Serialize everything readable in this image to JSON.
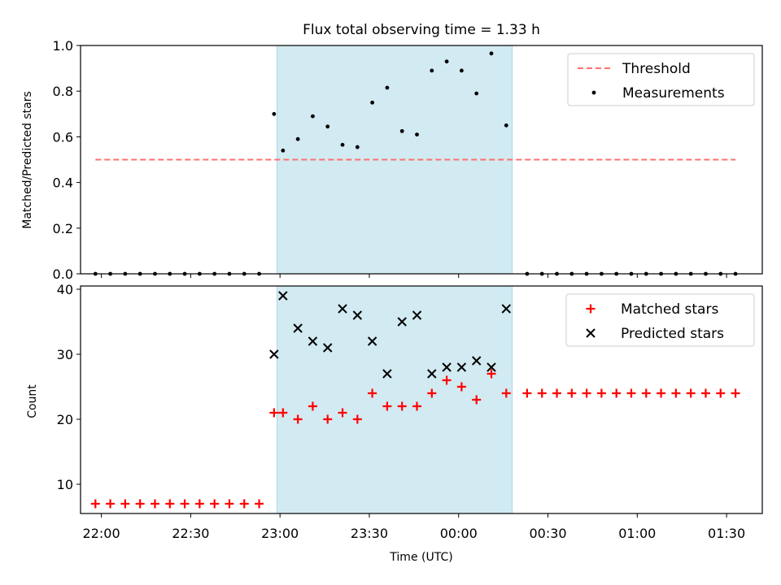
{
  "title": "Flux total observing time = 1.33 h",
  "colors": {
    "highlight": "#add8e6",
    "threshold": "#ff7070",
    "measurement": "#000000",
    "matched": "#ff0000",
    "predicted": "#000000"
  },
  "chart_data": [
    {
      "type": "scatter",
      "ylabel": "Matched/Predicted stars",
      "ylim": [
        0,
        1.0
      ],
      "yticks": [
        "0.0",
        "0.2",
        "0.4",
        "0.6",
        "0.8",
        "1.0"
      ],
      "x_range": [
        "21:53",
        "01:42"
      ],
      "highlight_span": [
        "22:59",
        "00:18"
      ],
      "legend_position": "top-right",
      "series": [
        {
          "name": "Threshold",
          "style": "dashed line",
          "x": [
            "21:58",
            "01:33"
          ],
          "values": [
            0.5,
            0.5
          ]
        },
        {
          "name": "Measurements",
          "style": "dot",
          "x": [
            "21:58",
            "22:03",
            "22:08",
            "22:13",
            "22:18",
            "22:23",
            "22:28",
            "22:33",
            "22:38",
            "22:43",
            "22:48",
            "22:53",
            "22:58",
            "23:01",
            "23:06",
            "23:11",
            "23:16",
            "23:21",
            "23:26",
            "23:31",
            "23:36",
            "23:41",
            "23:46",
            "23:51",
            "23:56",
            "24:01",
            "24:06",
            "24:11",
            "24:16",
            "24:23",
            "24:28",
            "24:33",
            "24:38",
            "24:43",
            "24:48",
            "24:53",
            "24:58",
            "25:03",
            "25:08",
            "25:13",
            "25:18",
            "25:23",
            "25:28",
            "25:33"
          ],
          "values": [
            0,
            0,
            0,
            0,
            0,
            0,
            0,
            0,
            0,
            0,
            0,
            0,
            0.7,
            0.54,
            0.59,
            0.69,
            0.645,
            0.565,
            0.555,
            0.75,
            0.815,
            0.625,
            0.61,
            0.89,
            0.93,
            0.89,
            0.79,
            0.965,
            0.65,
            0,
            0,
            0,
            0,
            0,
            0,
            0,
            0,
            0,
            0,
            0,
            0,
            0,
            0,
            0
          ]
        }
      ]
    },
    {
      "type": "scatter",
      "xlabel": "Time (UTC)",
      "ylabel": "Count",
      "ylim": [
        5.5,
        40.5
      ],
      "yticks": [
        "10",
        "20",
        "30",
        "40"
      ],
      "xticks": [
        "22:00",
        "22:30",
        "23:00",
        "23:30",
        "00:00",
        "00:30",
        "01:00",
        "01:30"
      ],
      "x_range": [
        "21:53",
        "01:42"
      ],
      "highlight_span": [
        "22:59",
        "00:18"
      ],
      "legend_position": "top-right",
      "series": [
        {
          "name": "Matched stars",
          "marker": "+",
          "x": [
            "21:58",
            "22:03",
            "22:08",
            "22:13",
            "22:18",
            "22:23",
            "22:28",
            "22:33",
            "22:38",
            "22:43",
            "22:48",
            "22:53",
            "22:58",
            "23:01",
            "23:06",
            "23:11",
            "23:16",
            "23:21",
            "23:26",
            "23:31",
            "23:36",
            "23:41",
            "23:46",
            "23:51",
            "23:56",
            "24:01",
            "24:06",
            "24:11",
            "24:16",
            "24:23",
            "24:28",
            "24:33",
            "24:38",
            "24:43",
            "24:48",
            "24:53",
            "24:58",
            "25:03",
            "25:08",
            "25:13",
            "25:18",
            "25:23",
            "25:28",
            "25:33"
          ],
          "values": [
            7,
            7,
            7,
            7,
            7,
            7,
            7,
            7,
            7,
            7,
            7,
            7,
            21,
            21,
            20,
            22,
            20,
            21,
            20,
            24,
            22,
            22,
            22,
            24,
            26,
            25,
            23,
            27,
            24,
            24,
            24,
            24,
            24,
            24,
            24,
            24,
            24,
            24,
            24,
            24,
            24,
            24,
            24,
            24
          ]
        },
        {
          "name": "Predicted stars",
          "marker": "x",
          "x": [
            "22:58",
            "23:01",
            "23:06",
            "23:11",
            "23:16",
            "23:21",
            "23:26",
            "23:31",
            "23:36",
            "23:41",
            "23:46",
            "23:51",
            "23:56",
            "24:01",
            "24:06",
            "24:11",
            "24:16"
          ],
          "values": [
            30,
            39,
            34,
            32,
            31,
            37,
            36,
            32,
            27,
            35,
            36,
            27,
            28,
            28,
            29,
            28,
            37
          ]
        }
      ]
    }
  ]
}
